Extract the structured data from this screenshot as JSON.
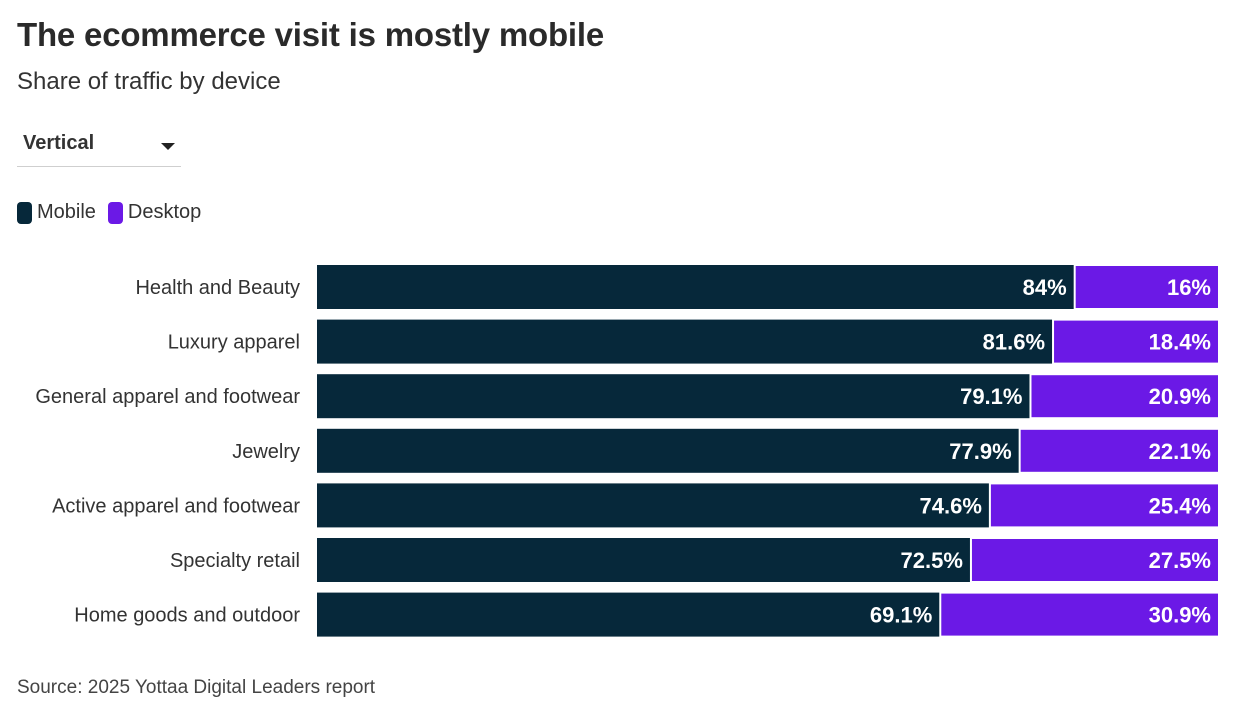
{
  "title": "The ecommerce visit is mostly mobile",
  "subtitle": "Share of traffic by device",
  "dropdown": {
    "selected": "Vertical"
  },
  "legend": {
    "mobile": "Mobile",
    "desktop": "Desktop"
  },
  "colors": {
    "mobile": "#06283a",
    "desktop": "#6b19e6",
    "label": "#ffffff",
    "category_text": "#333333"
  },
  "chart_data": {
    "type": "bar",
    "orientation": "horizontal",
    "stacked": true,
    "categories": [
      "Health and Beauty",
      "Luxury apparel",
      "General apparel and footwear",
      "Jewelry",
      "Active apparel and footwear",
      "Specialty retail",
      "Home goods and outdoor"
    ],
    "series": [
      {
        "name": "Mobile",
        "values": [
          84,
          81.6,
          79.1,
          77.9,
          74.6,
          72.5,
          69.1
        ],
        "labels": [
          "84%",
          "81.6%",
          "79.1%",
          "77.9%",
          "74.6%",
          "72.5%",
          "69.1%"
        ]
      },
      {
        "name": "Desktop",
        "values": [
          16,
          18.4,
          20.9,
          22.1,
          25.4,
          27.5,
          30.9
        ],
        "labels": [
          "16%",
          "18.4%",
          "20.9%",
          "22.1%",
          "25.4%",
          "27.5%",
          "30.9%"
        ]
      }
    ],
    "xlim": [
      0,
      100
    ],
    "grid": false,
    "legend_position": "top-left"
  },
  "source": "Source: 2025 Yottaa Digital Leaders report"
}
